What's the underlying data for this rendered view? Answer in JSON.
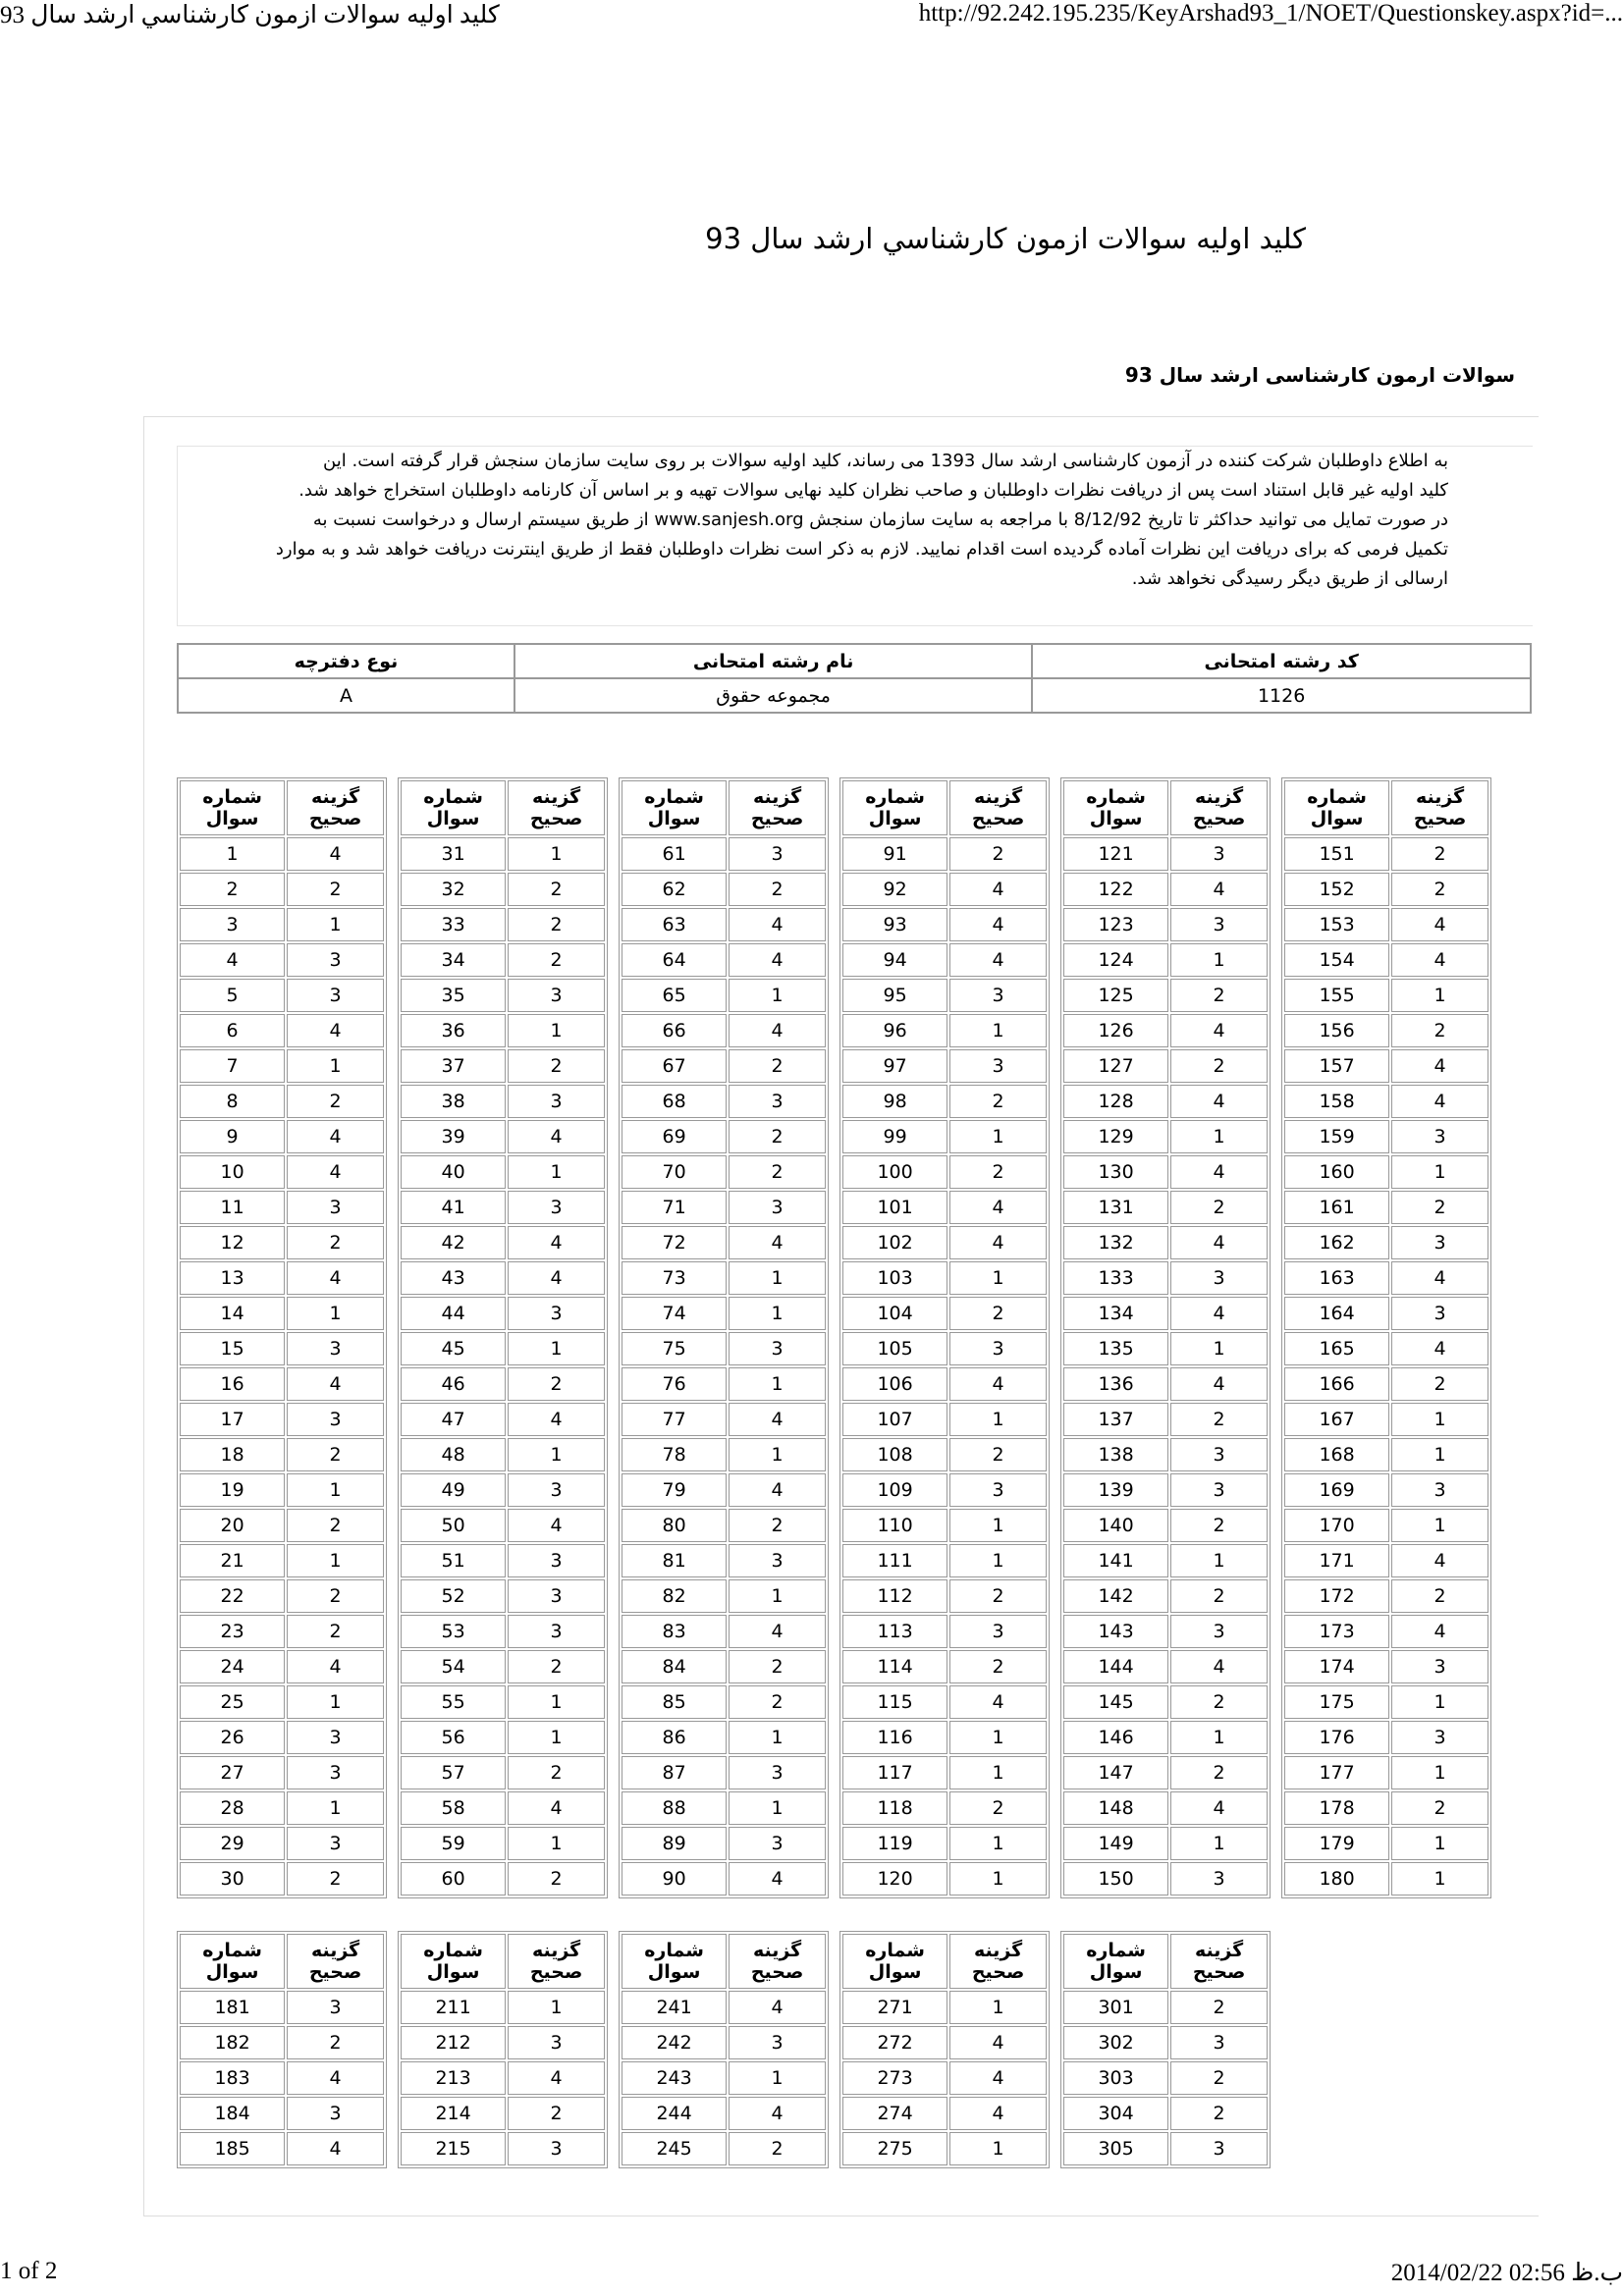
{
  "print_header": {
    "title": "كليد اوليه سوالات ازمون كارشناسي ارشد سال 93",
    "url": "http://92.242.195.235/KeyArshad93_1/NOET/Questionskey.aspx?id=..."
  },
  "page": {
    "title": "كليد اوليه سوالات ازمون كارشناسي ارشد سال 93",
    "subtitle": "سوالات ارمون کارشناسی ارشد سال 93"
  },
  "notice": {
    "lines": [
      "به اطلاع داوطلبان شرکت کننده در آزمون کارشناسی ارشد سال 1393 می رساند، کلید اولیه سوالات بر روی سایت سازمان سنجش قرار گرفته است. این",
      "کلید اولیه غیر قابل استناد است پس از دریافت نظرات داوطلبان و صاحب نظران کلید نهایی سوالات تهیه و بر اساس آن کارنامه داوطلبان استخراج خواهد شد.",
      "در صورت تمایل می توانید حداکثر تا تاریخ 8/12/92 با مراجعه به سایت سازمان سنجش www.sanjesh.org از طریق  سیستم ارسال و درخواست نسبت به",
      "تکمیل فرمی که برای دریافت این نظرات آماده گردیده است اقدام نمایید. لازم به ذکر است نظرات داوطلبان فقط از طریق اینترنت دریافت خواهد شد و به موارد",
      "ارسالی از طریق دیگر رسیدگی نخواهد شد."
    ]
  },
  "info_table": {
    "headers": [
      "کد رشته امتحانی",
      "نام رشته امتحانی",
      "نوع دفترچه"
    ],
    "values": [
      "1126",
      "مجموعه حقوق",
      "A"
    ]
  },
  "answer_key": {
    "headers": [
      "شماره سوال",
      "گزینه صحیح"
    ],
    "groups": [
      [
        {
          "rows": [
            [
              1,
              4
            ],
            [
              2,
              2
            ],
            [
              3,
              1
            ],
            [
              4,
              3
            ],
            [
              5,
              3
            ],
            [
              6,
              4
            ],
            [
              7,
              1
            ],
            [
              8,
              2
            ],
            [
              9,
              4
            ],
            [
              10,
              4
            ],
            [
              11,
              3
            ],
            [
              12,
              2
            ],
            [
              13,
              4
            ],
            [
              14,
              1
            ],
            [
              15,
              3
            ],
            [
              16,
              4
            ],
            [
              17,
              3
            ],
            [
              18,
              2
            ],
            [
              19,
              1
            ],
            [
              20,
              2
            ],
            [
              21,
              1
            ],
            [
              22,
              2
            ],
            [
              23,
              2
            ],
            [
              24,
              4
            ],
            [
              25,
              1
            ],
            [
              26,
              3
            ],
            [
              27,
              3
            ],
            [
              28,
              1
            ],
            [
              29,
              3
            ],
            [
              30,
              2
            ]
          ]
        },
        {
          "rows": [
            [
              31,
              1
            ],
            [
              32,
              2
            ],
            [
              33,
              2
            ],
            [
              34,
              2
            ],
            [
              35,
              3
            ],
            [
              36,
              1
            ],
            [
              37,
              2
            ],
            [
              38,
              3
            ],
            [
              39,
              4
            ],
            [
              40,
              1
            ],
            [
              41,
              3
            ],
            [
              42,
              4
            ],
            [
              43,
              4
            ],
            [
              44,
              3
            ],
            [
              45,
              1
            ],
            [
              46,
              2
            ],
            [
              47,
              4
            ],
            [
              48,
              1
            ],
            [
              49,
              3
            ],
            [
              50,
              4
            ],
            [
              51,
              3
            ],
            [
              52,
              3
            ],
            [
              53,
              3
            ],
            [
              54,
              2
            ],
            [
              55,
              1
            ],
            [
              56,
              1
            ],
            [
              57,
              2
            ],
            [
              58,
              4
            ],
            [
              59,
              1
            ],
            [
              60,
              2
            ]
          ]
        },
        {
          "rows": [
            [
              61,
              3
            ],
            [
              62,
              2
            ],
            [
              63,
              4
            ],
            [
              64,
              4
            ],
            [
              65,
              1
            ],
            [
              66,
              4
            ],
            [
              67,
              2
            ],
            [
              68,
              3
            ],
            [
              69,
              2
            ],
            [
              70,
              2
            ],
            [
              71,
              3
            ],
            [
              72,
              4
            ],
            [
              73,
              1
            ],
            [
              74,
              1
            ],
            [
              75,
              3
            ],
            [
              76,
              1
            ],
            [
              77,
              4
            ],
            [
              78,
              1
            ],
            [
              79,
              4
            ],
            [
              80,
              2
            ],
            [
              81,
              3
            ],
            [
              82,
              1
            ],
            [
              83,
              4
            ],
            [
              84,
              2
            ],
            [
              85,
              2
            ],
            [
              86,
              1
            ],
            [
              87,
              3
            ],
            [
              88,
              1
            ],
            [
              89,
              3
            ],
            [
              90,
              4
            ]
          ]
        },
        {
          "rows": [
            [
              91,
              2
            ],
            [
              92,
              4
            ],
            [
              93,
              4
            ],
            [
              94,
              4
            ],
            [
              95,
              3
            ],
            [
              96,
              1
            ],
            [
              97,
              3
            ],
            [
              98,
              2
            ],
            [
              99,
              1
            ],
            [
              100,
              2
            ],
            [
              101,
              4
            ],
            [
              102,
              4
            ],
            [
              103,
              1
            ],
            [
              104,
              2
            ],
            [
              105,
              3
            ],
            [
              106,
              4
            ],
            [
              107,
              1
            ],
            [
              108,
              2
            ],
            [
              109,
              3
            ],
            [
              110,
              1
            ],
            [
              111,
              1
            ],
            [
              112,
              2
            ],
            [
              113,
              3
            ],
            [
              114,
              2
            ],
            [
              115,
              4
            ],
            [
              116,
              1
            ],
            [
              117,
              1
            ],
            [
              118,
              2
            ],
            [
              119,
              1
            ],
            [
              120,
              1
            ]
          ]
        },
        {
          "rows": [
            [
              121,
              3
            ],
            [
              122,
              4
            ],
            [
              123,
              3
            ],
            [
              124,
              1
            ],
            [
              125,
              2
            ],
            [
              126,
              4
            ],
            [
              127,
              2
            ],
            [
              128,
              4
            ],
            [
              129,
              1
            ],
            [
              130,
              4
            ],
            [
              131,
              2
            ],
            [
              132,
              4
            ],
            [
              133,
              3
            ],
            [
              134,
              4
            ],
            [
              135,
              1
            ],
            [
              136,
              4
            ],
            [
              137,
              2
            ],
            [
              138,
              3
            ],
            [
              139,
              3
            ],
            [
              140,
              2
            ],
            [
              141,
              1
            ],
            [
              142,
              2
            ],
            [
              143,
              3
            ],
            [
              144,
              4
            ],
            [
              145,
              2
            ],
            [
              146,
              1
            ],
            [
              147,
              2
            ],
            [
              148,
              4
            ],
            [
              149,
              1
            ],
            [
              150,
              3
            ]
          ]
        },
        {
          "rows": [
            [
              151,
              2
            ],
            [
              152,
              2
            ],
            [
              153,
              4
            ],
            [
              154,
              4
            ],
            [
              155,
              1
            ],
            [
              156,
              2
            ],
            [
              157,
              4
            ],
            [
              158,
              4
            ],
            [
              159,
              3
            ],
            [
              160,
              1
            ],
            [
              161,
              2
            ],
            [
              162,
              3
            ],
            [
              163,
              4
            ],
            [
              164,
              3
            ],
            [
              165,
              4
            ],
            [
              166,
              2
            ],
            [
              167,
              1
            ],
            [
              168,
              1
            ],
            [
              169,
              3
            ],
            [
              170,
              1
            ],
            [
              171,
              4
            ],
            [
              172,
              2
            ],
            [
              173,
              4
            ],
            [
              174,
              3
            ],
            [
              175,
              1
            ],
            [
              176,
              3
            ],
            [
              177,
              1
            ],
            [
              178,
              2
            ],
            [
              179,
              1
            ],
            [
              180,
              1
            ]
          ]
        }
      ],
      [
        {
          "rows": [
            [
              181,
              3
            ],
            [
              182,
              2
            ],
            [
              183,
              4
            ],
            [
              184,
              3
            ],
            [
              185,
              4
            ]
          ]
        },
        {
          "rows": [
            [
              211,
              1
            ],
            [
              212,
              3
            ],
            [
              213,
              4
            ],
            [
              214,
              2
            ],
            [
              215,
              3
            ]
          ]
        },
        {
          "rows": [
            [
              241,
              4
            ],
            [
              242,
              3
            ],
            [
              243,
              1
            ],
            [
              244,
              4
            ],
            [
              245,
              2
            ]
          ]
        },
        {
          "rows": [
            [
              271,
              1
            ],
            [
              272,
              4
            ],
            [
              273,
              4
            ],
            [
              274,
              4
            ],
            [
              275,
              1
            ]
          ]
        },
        {
          "rows": [
            [
              301,
              2
            ],
            [
              302,
              3
            ],
            [
              303,
              2
            ],
            [
              304,
              2
            ],
            [
              305,
              3
            ]
          ]
        }
      ]
    ]
  },
  "print_footer": {
    "page": "1 of 2",
    "datetime": "2014/02/22 02:56 ب.ظ"
  }
}
